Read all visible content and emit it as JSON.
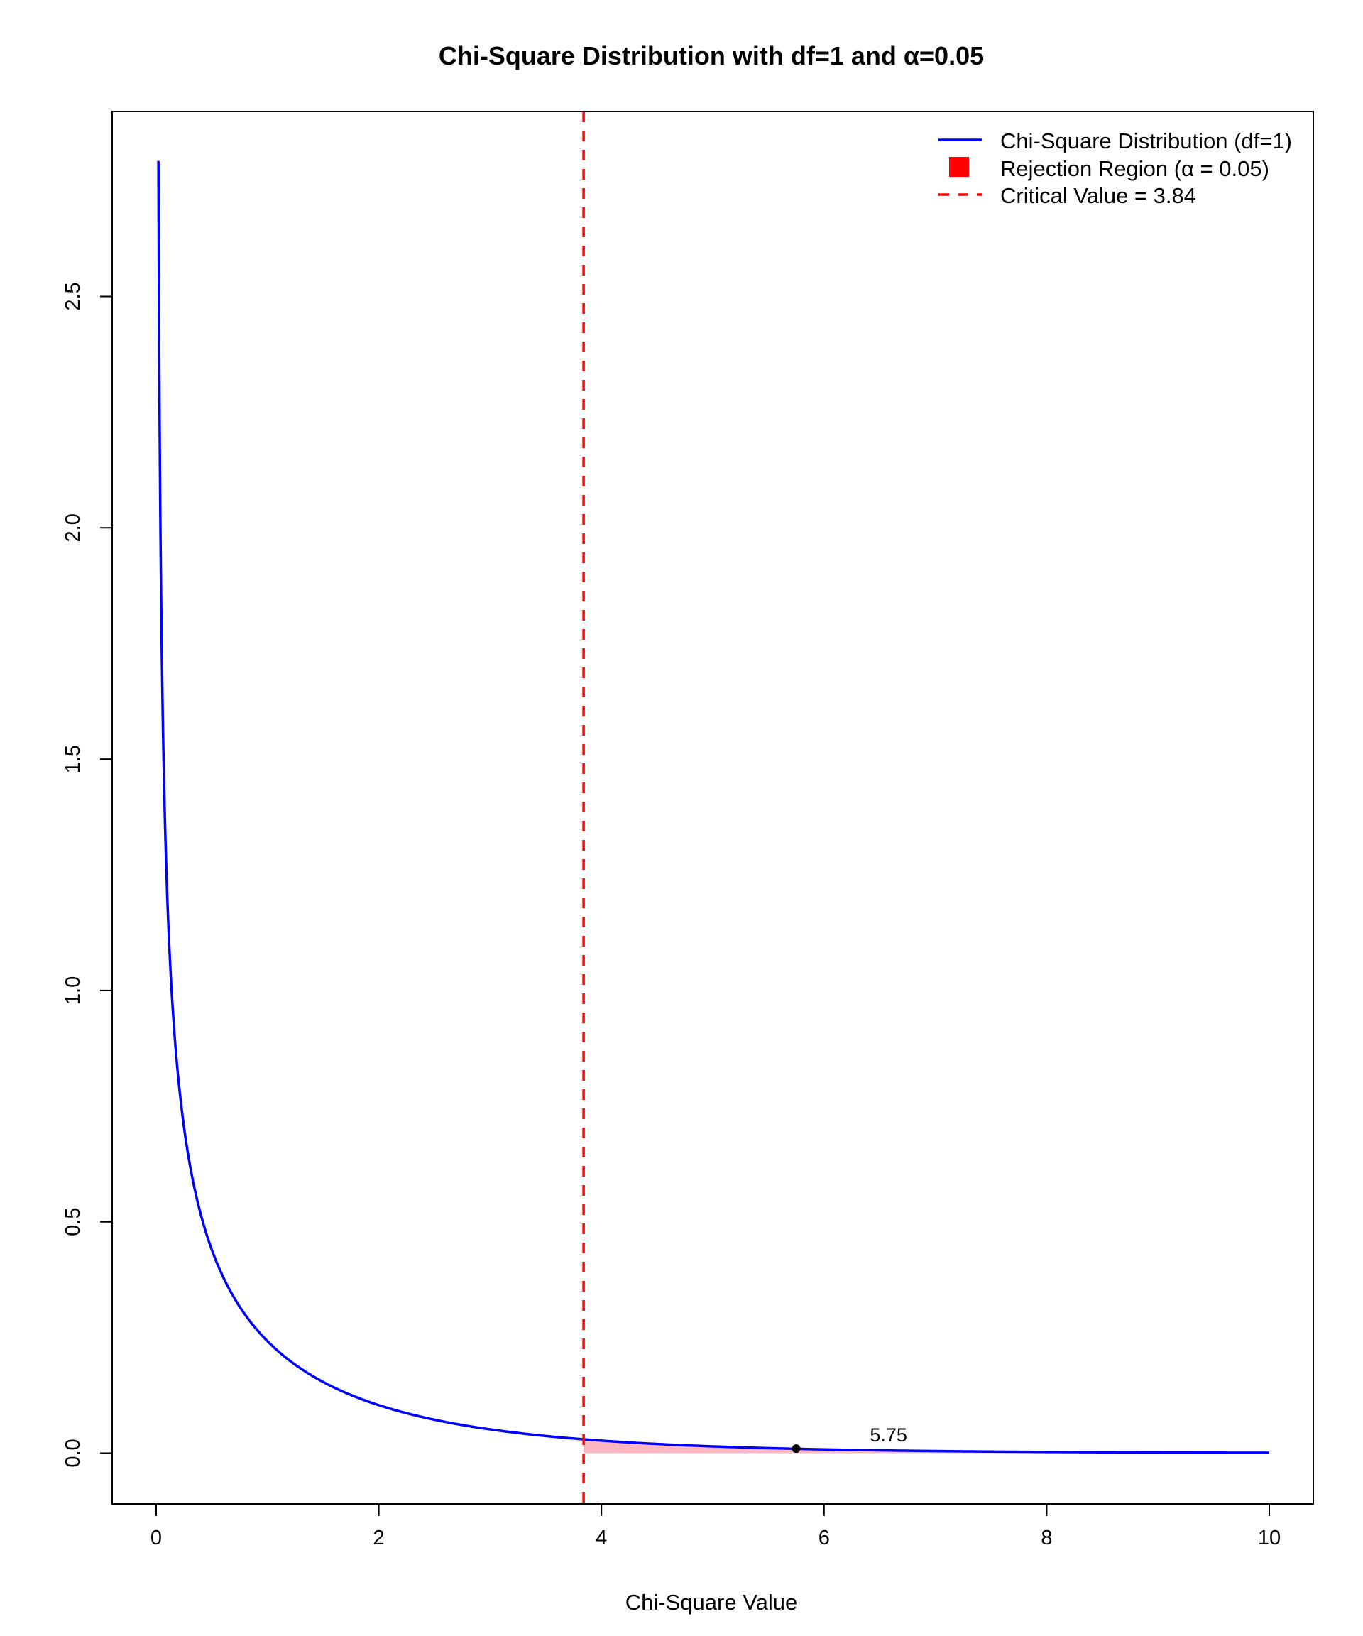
{
  "chart_data": {
    "type": "line",
    "title": "Chi-Square Distribution with df=1 and α=0.05",
    "xlabel": "Chi-Square Value",
    "ylabel": "",
    "xlim": [
      -0.4,
      10.4
    ],
    "ylim": [
      -0.11,
      2.9
    ],
    "grid": false,
    "legend_position": "top-right",
    "x_ticks": [
      "0",
      "2",
      "4",
      "6",
      "8",
      "10"
    ],
    "y_ticks": [
      "0.0",
      "0.5",
      "1.0",
      "1.5",
      "2.0",
      "2.5"
    ],
    "series": [
      {
        "name": "Chi-Square Distribution (df=1)",
        "color": "#0000ff",
        "x_range": [
          0.02,
          10
        ],
        "function": "chi-square density, df=1"
      }
    ],
    "rejection_region": {
      "legend_label": "Rejection Region (α = 0.05)",
      "x_start": 3.84,
      "x_end": 10,
      "fill_color": "#ffb6c1",
      "legend_color": "#ff0000"
    },
    "critical_line": {
      "legend_label": "Critical Value = 3.84",
      "x": 3.84,
      "color": "#ff0000",
      "style": "dashed"
    },
    "test_point": {
      "x": 5.75,
      "y": 0.0098,
      "label": "5.75",
      "color": "#000000"
    }
  }
}
